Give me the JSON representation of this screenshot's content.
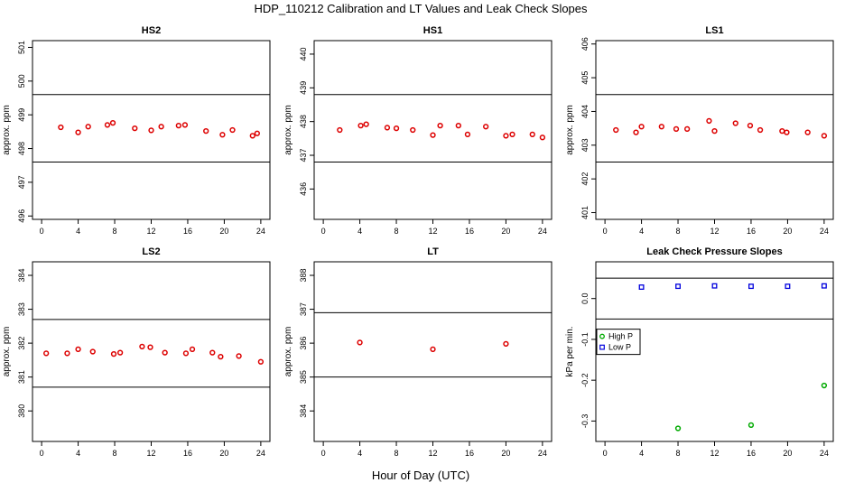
{
  "figure": {
    "title": "HDP_110212  Calibration and LT Values and Leak Check Slopes",
    "xlabel": "Hour of Day (UTC)"
  },
  "colors": {
    "points": "#dd0000",
    "high_p": "#00aa00",
    "low_p": "#0000dd",
    "lines": "#000000"
  },
  "chart_data": [
    {
      "type": "scatter",
      "title": "HS2",
      "ylabel": "approx. ppm",
      "xlim": [
        -1,
        25
      ],
      "ylim": [
        495.9,
        501.2
      ],
      "xticks": [
        0,
        4,
        8,
        12,
        16,
        20,
        24
      ],
      "yticks": [
        496,
        497,
        498,
        499,
        500,
        501
      ],
      "hlines": [
        497.6,
        499.6
      ],
      "series": [
        {
          "marker": "circle",
          "x": [
            2.1,
            4.0,
            5.1,
            7.2,
            7.8,
            10.2,
            12.0,
            13.1,
            15.0,
            15.7,
            18.0,
            19.8,
            20.9,
            23.1,
            23.6
          ],
          "y": [
            498.63,
            498.48,
            498.65,
            498.7,
            498.76,
            498.6,
            498.54,
            498.65,
            498.68,
            498.7,
            498.52,
            498.41,
            498.55,
            498.38,
            498.45
          ]
        }
      ]
    },
    {
      "type": "scatter",
      "title": "HS1",
      "ylabel": "approx. ppm",
      "xlim": [
        -1,
        25
      ],
      "ylim": [
        435.1,
        440.4
      ],
      "xticks": [
        0,
        4,
        8,
        12,
        16,
        20,
        24
      ],
      "yticks": [
        436,
        437,
        438,
        439,
        440
      ],
      "hlines": [
        436.8,
        438.8
      ],
      "series": [
        {
          "marker": "circle",
          "x": [
            1.8,
            4.1,
            4.7,
            7.0,
            8.0,
            9.8,
            12.0,
            12.8,
            14.8,
            15.8,
            17.8,
            20.0,
            20.7,
            22.9,
            24.0
          ],
          "y": [
            437.75,
            437.88,
            437.92,
            437.82,
            437.8,
            437.75,
            437.6,
            437.88,
            437.88,
            437.62,
            437.85,
            437.58,
            437.62,
            437.62,
            437.53
          ]
        }
      ]
    },
    {
      "type": "scatter",
      "title": "LS1",
      "ylabel": "approx. ppm",
      "xlim": [
        -1,
        25
      ],
      "ylim": [
        400.8,
        406.1
      ],
      "xticks": [
        0,
        4,
        8,
        12,
        16,
        20,
        24
      ],
      "yticks": [
        401,
        402,
        403,
        404,
        405,
        406
      ],
      "hlines": [
        402.5,
        404.5
      ],
      "series": [
        {
          "marker": "circle",
          "x": [
            1.2,
            3.4,
            4.0,
            6.2,
            7.8,
            9.0,
            11.4,
            12.0,
            14.3,
            15.9,
            17.0,
            19.4,
            19.9,
            22.2,
            24.0
          ],
          "y": [
            403.45,
            403.38,
            403.55,
            403.55,
            403.48,
            403.48,
            403.72,
            403.42,
            403.65,
            403.58,
            403.45,
            403.42,
            403.38,
            403.38,
            403.28
          ]
        }
      ]
    },
    {
      "type": "scatter",
      "title": "LS2",
      "ylabel": "approx. ppm",
      "xlim": [
        -1,
        25
      ],
      "ylim": [
        379.1,
        384.4
      ],
      "xticks": [
        0,
        4,
        8,
        12,
        16,
        20,
        24
      ],
      "yticks": [
        380,
        381,
        382,
        383,
        384
      ],
      "hlines": [
        380.7,
        382.7
      ],
      "series": [
        {
          "marker": "circle",
          "x": [
            0.5,
            2.8,
            4.0,
            5.6,
            7.9,
            8.6,
            11.0,
            11.9,
            13.5,
            15.8,
            16.5,
            18.7,
            19.6,
            21.6,
            24.0
          ],
          "y": [
            381.7,
            381.7,
            381.82,
            381.75,
            381.68,
            381.72,
            381.9,
            381.88,
            381.72,
            381.7,
            381.82,
            381.72,
            381.6,
            381.62,
            381.45
          ]
        }
      ]
    },
    {
      "type": "scatter",
      "title": "LT",
      "ylabel": "approx. ppm",
      "xlim": [
        -1,
        25
      ],
      "ylim": [
        383.1,
        388.4
      ],
      "xticks": [
        0,
        4,
        8,
        12,
        16,
        20,
        24
      ],
      "yticks": [
        384,
        385,
        386,
        387,
        388
      ],
      "hlines": [
        385.0,
        386.9
      ],
      "series": [
        {
          "marker": "circle",
          "x": [
            4.0,
            12.0,
            20.0
          ],
          "y": [
            386.02,
            385.82,
            385.98
          ]
        }
      ]
    },
    {
      "type": "scatter",
      "title": "Leak Check Pressure Slopes",
      "ylabel": "kPa per min.",
      "xlim": [
        -1,
        25
      ],
      "ylim": [
        -0.35,
        0.09
      ],
      "xticks": [
        0,
        4,
        8,
        12,
        16,
        20,
        24
      ],
      "yticks": [
        -0.3,
        -0.2,
        -0.1,
        0.0
      ],
      "ytick_labels": [
        "-0.3",
        "-0.2",
        "-0.1",
        "0.0"
      ],
      "hlines": [
        0.05,
        -0.05
      ],
      "legend": {
        "placement": "left",
        "entries": [
          "High P",
          "Low P"
        ]
      },
      "series": [
        {
          "name": "High P",
          "marker": "circle",
          "x": [
            8.0,
            16.0,
            24.0
          ],
          "y": [
            -0.318,
            -0.31,
            -0.213
          ]
        },
        {
          "name": "Low P",
          "marker": "square",
          "x": [
            4.0,
            8.0,
            12.0,
            16.0,
            20.0,
            24.0
          ],
          "y": [
            0.028,
            0.03,
            0.031,
            0.03,
            0.03,
            0.031
          ]
        }
      ]
    }
  ]
}
